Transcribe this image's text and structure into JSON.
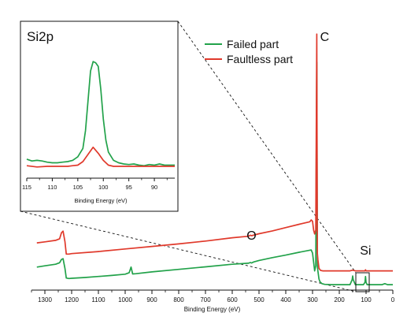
{
  "chart_data": [
    {
      "type": "line",
      "id": "main",
      "xlabel": "Binding Energy (eV)",
      "xlim": [
        1350,
        0
      ],
      "x_reversed": true,
      "ylim": [
        0,
        100
      ],
      "y_axis_shown": false,
      "grid": false,
      "legend_position": "top-right",
      "xticks": [
        1300,
        1200,
        1100,
        1000,
        900,
        800,
        700,
        600,
        500,
        400,
        300,
        200,
        100,
        0
      ],
      "annotations": [
        {
          "text": "C",
          "x": 284
        },
        {
          "text": "O",
          "x": 531
        },
        {
          "text": "Si",
          "x": 102
        }
      ],
      "series": [
        {
          "name": "Failed part",
          "color": "#22a24a",
          "x": [
            1330,
            1300,
            1260,
            1245,
            1238,
            1232,
            1225,
            1220,
            1210,
            1200,
            1150,
            1100,
            1050,
            1000,
            985,
            978,
            972,
            960,
            900,
            800,
            700,
            600,
            540,
            532,
            528,
            520,
            500,
            450,
            400,
            350,
            305,
            300,
            292,
            288,
            284,
            282,
            280,
            276,
            272,
            265,
            255,
            230,
            200,
            160,
            152,
            150,
            148,
            140,
            125,
            110,
            104,
            102,
            100,
            96,
            90,
            60,
            40,
            30,
            25,
            20,
            10,
            0
          ],
          "values": [
            7.5,
            8.0,
            8.6,
            9.2,
            10.5,
            10.8,
            7.0,
            3.2,
            3.0,
            3.1,
            3.4,
            3.8,
            4.2,
            4.7,
            5.3,
            7.5,
            4.8,
            4.9,
            5.6,
            6.6,
            7.6,
            8.6,
            9.0,
            9.3,
            9.1,
            9.5,
            10.1,
            11.2,
            12.2,
            13.3,
            14.2,
            13.0,
            6.0,
            8.0,
            88.0,
            8.0,
            6.0,
            2.8,
            1.7,
            1.0,
            0.7,
            0.6,
            0.6,
            0.6,
            2.5,
            4.0,
            2.5,
            0.6,
            0.6,
            0.6,
            1.5,
            3.8,
            1.5,
            0.6,
            0.6,
            0.6,
            0.6,
            1.0,
            0.8,
            0.6,
            0.6,
            0.6
          ]
        },
        {
          "name": "Faultless part",
          "color": "#e0392b",
          "x": [
            1330,
            1300,
            1260,
            1245,
            1238,
            1232,
            1225,
            1220,
            1210,
            1200,
            1100,
            1000,
            900,
            800,
            700,
            600,
            540,
            532,
            528,
            500,
            450,
            400,
            350,
            310,
            305,
            300,
            296,
            292,
            288,
            284,
            282,
            280,
            276,
            270,
            262,
            250,
            200,
            160,
            150,
            140,
            110,
            104,
            102,
            100,
            96,
            60,
            40,
            20,
            0
          ],
          "values": [
            17.0,
            17.4,
            18.0,
            18.6,
            21.0,
            21.6,
            17.5,
            12.6,
            12.6,
            12.8,
            13.6,
            14.6,
            15.6,
            16.6,
            17.7,
            19.0,
            19.6,
            20.0,
            19.8,
            20.6,
            21.7,
            23.0,
            24.3,
            25.3,
            26.0,
            25.5,
            22.0,
            20.5,
            22.0,
            99.0,
            13.0,
            10.5,
            7.0,
            6.2,
            6.0,
            6.0,
            6.0,
            6.0,
            6.3,
            6.0,
            6.0,
            6.0,
            6.4,
            6.0,
            6.0,
            6.0,
            6.0,
            6.0,
            6.0
          ]
        }
      ]
    },
    {
      "type": "line",
      "id": "inset",
      "title": "Si2p",
      "xlabel": "Binding Energy (eV)",
      "xlim": [
        115,
        86
      ],
      "x_reversed": true,
      "ylim": [
        0,
        100
      ],
      "y_axis_shown": false,
      "grid": false,
      "xticks": [
        115,
        110,
        105,
        100,
        95,
        90
      ],
      "series": [
        {
          "name": "Failed part",
          "color": "#22a24a",
          "x": [
            115,
            114,
            113,
            112,
            111,
            110,
            109,
            108,
            107,
            106,
            105,
            104,
            103.5,
            103,
            102.5,
            102,
            101.5,
            101,
            100.5,
            100,
            99.5,
            99,
            98,
            97,
            96,
            95,
            94,
            93,
            92,
            91,
            90,
            89,
            88,
            87,
            86
          ],
          "values": [
            6.0,
            4.5,
            5.0,
            4.5,
            3.5,
            3.0,
            3.0,
            3.5,
            4.0,
            5.0,
            8.0,
            15.0,
            30.0,
            55.0,
            80.0,
            88.0,
            87.0,
            84.0,
            65.0,
            40.0,
            22.0,
            12.0,
            5.0,
            3.0,
            2.0,
            1.5,
            2.0,
            1.0,
            0.5,
            1.5,
            1.0,
            2.0,
            1.0,
            1.0,
            1.0
          ]
        },
        {
          "name": "Faultless part",
          "color": "#e0392b",
          "x": [
            115,
            113,
            111,
            109,
            107,
            106,
            105,
            104,
            103,
            102,
            101,
            100,
            99,
            98,
            96,
            94,
            92,
            90,
            88,
            86
          ],
          "values": [
            0.5,
            -0.5,
            0.0,
            0.0,
            0.0,
            0.5,
            1.0,
            4.0,
            10.0,
            16.0,
            11.0,
            5.0,
            1.0,
            0.0,
            0.0,
            0.0,
            0.0,
            0.0,
            0.0,
            0.0
          ]
        }
      ]
    }
  ]
}
